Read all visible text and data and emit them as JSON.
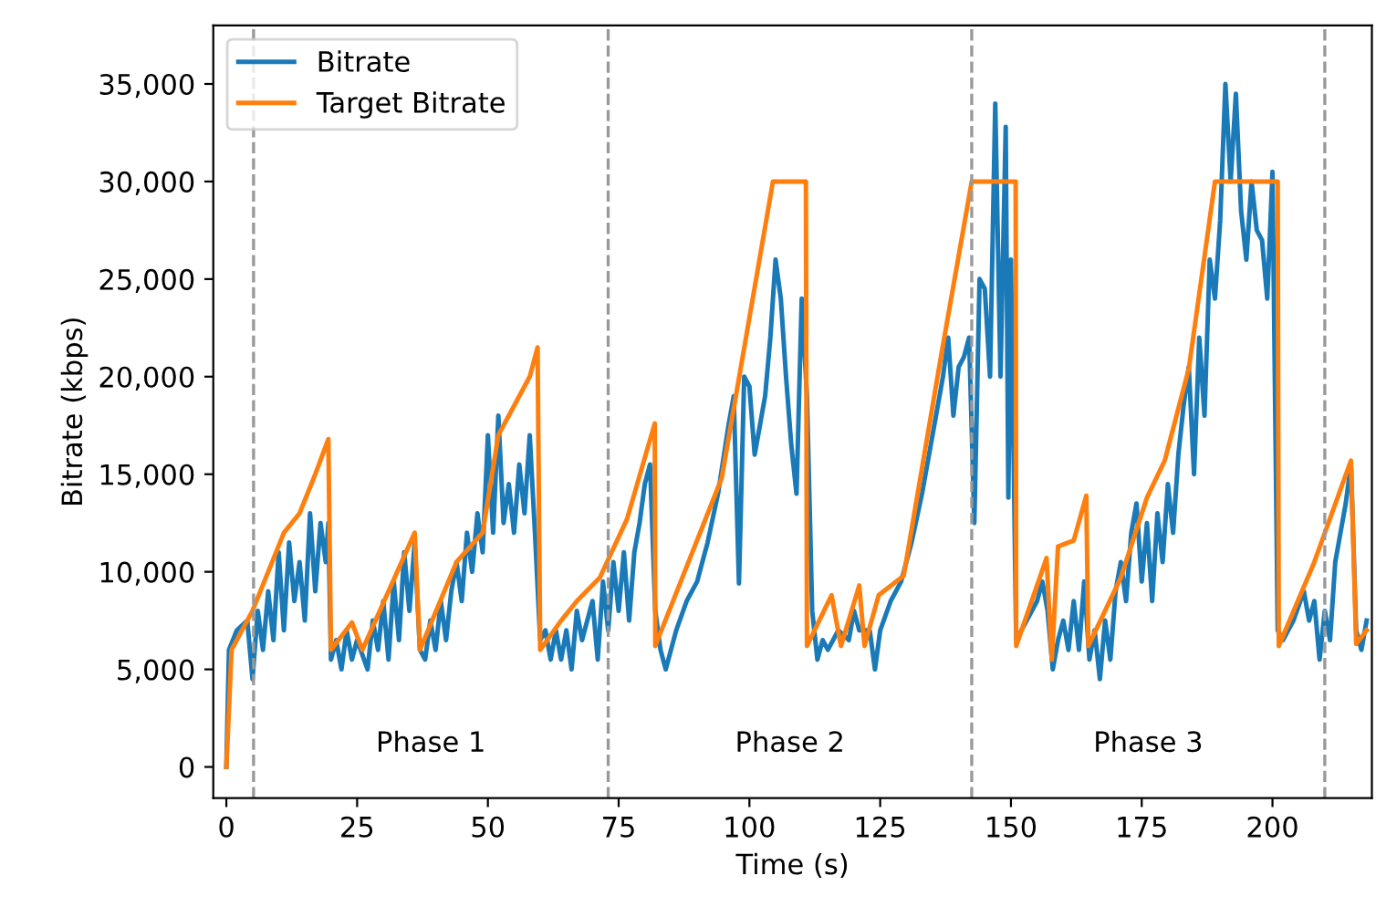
{
  "chart_data": {
    "type": "line",
    "xlabel": "Time (s)",
    "ylabel": "Bitrate (kbps)",
    "xlim": [
      -2.5,
      219
    ],
    "xticks": [
      0,
      25,
      50,
      75,
      100,
      125,
      150,
      175,
      200
    ],
    "ylim": [
      -1600,
      38000
    ],
    "yticks": [
      0,
      {
        "value": 5000,
        "label": "5,000"
      },
      {
        "value": 10000,
        "label": "10,000"
      },
      {
        "value": 15000,
        "label": "15,000"
      },
      {
        "value": 20000,
        "label": "20,000"
      },
      {
        "value": 25000,
        "label": "25,000"
      },
      {
        "value": 30000,
        "label": "30,000"
      },
      {
        "value": 35000,
        "label": "35,000"
      }
    ],
    "grid": false,
    "legend": "top left",
    "marker": "none",
    "line_style": "solid",
    "series": [
      {
        "name": "Bitrate",
        "color": "#1a7ab8",
        "x": [
          0,
          0.5,
          2,
          4,
          5,
          6,
          7,
          8,
          9,
          10,
          11,
          12,
          13,
          14,
          15,
          16,
          17,
          18,
          19,
          19.5,
          20,
          21,
          22,
          23,
          24,
          25,
          27,
          28,
          29,
          30,
          31,
          32,
          33,
          34,
          35,
          36,
          37,
          38,
          39,
          40,
          41,
          42,
          43,
          44,
          45,
          46,
          47,
          48,
          49,
          50,
          51,
          52,
          53,
          54,
          55,
          56,
          57,
          58,
          59,
          60,
          61,
          62,
          63,
          64,
          65,
          66,
          67,
          68,
          70,
          71,
          72,
          73,
          74,
          75,
          76,
          77,
          78,
          79,
          80,
          81,
          82,
          83,
          84,
          86,
          88,
          90,
          92,
          94,
          96,
          97,
          98,
          99,
          100,
          101,
          102,
          103,
          104,
          105,
          106,
          107,
          108,
          109,
          110,
          111,
          112,
          113,
          114,
          115,
          117,
          119,
          120,
          121,
          123,
          124,
          125,
          127,
          129,
          131,
          133,
          135,
          137,
          138,
          139,
          140,
          141,
          142,
          143,
          144,
          145,
          146,
          147,
          148,
          149,
          149.5,
          150,
          151,
          153,
          155,
          156,
          157,
          158,
          159,
          160,
          161,
          162,
          163,
          164,
          165,
          166,
          167,
          168,
          169,
          170,
          171,
          172,
          173,
          174,
          175,
          176,
          177,
          178,
          179,
          180,
          181,
          182,
          183,
          184,
          185,
          186,
          187,
          188,
          189,
          190,
          191,
          192,
          193,
          194,
          195,
          196,
          197,
          198,
          199,
          200,
          201,
          202,
          204,
          206,
          207,
          208,
          209,
          210,
          211,
          212,
          213,
          214,
          215,
          216,
          217,
          218
        ],
        "values": [
          0,
          6000,
          7000,
          7500,
          4500,
          8000,
          6000,
          9000,
          6500,
          11000,
          7000,
          11500,
          8500,
          10500,
          7500,
          13000,
          9000,
          12500,
          10500,
          12500,
          5500,
          6500,
          5000,
          7000,
          5500,
          6500,
          5000,
          7500,
          6000,
          8500,
          5500,
          9500,
          6500,
          11000,
          8000,
          11500,
          6000,
          5500,
          7500,
          6000,
          8500,
          6500,
          9000,
          10500,
          8500,
          12000,
          10000,
          13000,
          11000,
          17000,
          12000,
          18000,
          12500,
          14500,
          12000,
          15500,
          13000,
          17000,
          12000,
          6500,
          7000,
          5500,
          7000,
          5500,
          7000,
          5000,
          8000,
          6500,
          8500,
          5500,
          9500,
          7000,
          10500,
          8000,
          11000,
          7500,
          11000,
          12500,
          14500,
          15500,
          8000,
          6000,
          5000,
          7000,
          8500,
          9500,
          11500,
          14000,
          17500,
          19000,
          9400,
          20000,
          19500,
          16000,
          17500,
          19000,
          22000,
          26000,
          24000,
          20000,
          16500,
          14000,
          24000,
          19000,
          8000,
          5500,
          6500,
          6000,
          7000,
          6500,
          8000,
          7000,
          7000,
          5000,
          7000,
          8500,
          9500,
          11500,
          14000,
          17000,
          20000,
          22000,
          18000,
          20500,
          21000,
          22000,
          12500,
          25000,
          24500,
          20000,
          34000,
          20000,
          32800,
          13800,
          26000,
          6500,
          7500,
          8500,
          9500,
          8000,
          5000,
          6500,
          7500,
          6000,
          8500,
          6000,
          9500,
          5500,
          7000,
          4500,
          7500,
          5500,
          9000,
          10500,
          8500,
          12000,
          13500,
          9500,
          12500,
          8500,
          13000,
          10500,
          14500,
          12000,
          16000,
          18500,
          20500,
          15000,
          22000,
          18000,
          26000,
          24000,
          28000,
          35000,
          30000,
          34500,
          28500,
          26000,
          30000,
          27500,
          27000,
          24000,
          30500,
          7000,
          6500,
          7500,
          9000,
          7500,
          8500,
          5500,
          8000,
          6500,
          10500,
          12000,
          13500,
          15500,
          7000,
          6000,
          7500
        ]
      },
      {
        "name": "Target Bitrate",
        "color": "#ff7f0e",
        "x": [
          0,
          1,
          5,
          11,
          14,
          17,
          19.5,
          20,
          24,
          26,
          36,
          37,
          44,
          49,
          52,
          54,
          58,
          59.5,
          60,
          64,
          67,
          71.4,
          76.6,
          81.9,
          82,
          94.7,
          104.5,
          110.8,
          111,
          115.7,
          117.5,
          121,
          122,
          124.7,
          129.5,
          136.6,
          142.5,
          150.9,
          151,
          156.8,
          157.8,
          159,
          162,
          164.4,
          164.8,
          171,
          176,
          179.4,
          184,
          189,
          201,
          201.2,
          208,
          215,
          216,
          218
        ],
        "values": [
          0,
          6000,
          8000,
          12000,
          13000,
          15000,
          16800,
          6000,
          7400,
          6000,
          12000,
          6000,
          10500,
          12000,
          17000,
          18000,
          20000,
          21500,
          6000,
          7500,
          8500,
          9700,
          12700,
          17600,
          6200,
          14800,
          30000,
          30000,
          6200,
          8800,
          6200,
          9300,
          6200,
          8800,
          9800,
          21000,
          30000,
          30000,
          6200,
          10700,
          5500,
          11300,
          11600,
          13900,
          6200,
          9700,
          13800,
          15700,
          20400,
          30000,
          30000,
          6200,
          10500,
          15700,
          6300,
          7000
        ]
      }
    ],
    "ref_lines": [
      {
        "axis": "x",
        "value": 5.2,
        "color": "#999999",
        "line_style": "dashed"
      },
      {
        "axis": "x",
        "value": 73,
        "color": "#999999",
        "line_style": "dashed"
      },
      {
        "axis": "x",
        "value": 142.5,
        "color": "#999999",
        "line_style": "dashed"
      },
      {
        "axis": "x",
        "value": 210,
        "color": "#999999",
        "line_style": "dashed"
      }
    ],
    "annotations": [
      "Phase 1",
      "Phase 2",
      "Phase 3"
    ]
  }
}
